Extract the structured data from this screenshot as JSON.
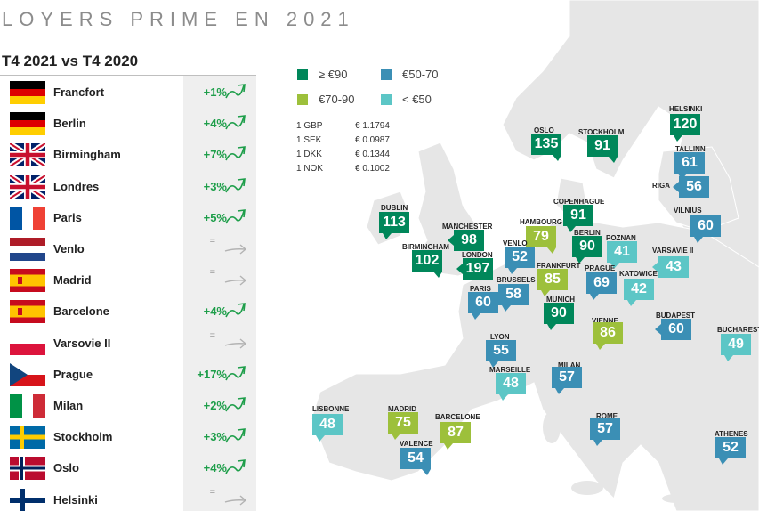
{
  "title": "LOYERS PRIME EN 2021",
  "panel": {
    "subtitle": "T4 2021 vs T4 2020",
    "rows": [
      {
        "city": "Francfort",
        "flag": "de-flag-icon",
        "change": "+1%",
        "trend": "up"
      },
      {
        "city": "Berlin",
        "flag": "de-flag-icon",
        "change": "+4%",
        "trend": "up"
      },
      {
        "city": "Birmingham",
        "flag": "uk-flag-icon",
        "change": "+7%",
        "trend": "up"
      },
      {
        "city": "Londres",
        "flag": "uk-flag-icon",
        "change": "+3%",
        "trend": "up"
      },
      {
        "city": "Paris",
        "flag": "fr-flag-icon",
        "change": "+5%",
        "trend": "up"
      },
      {
        "city": "Venlo",
        "flag": "nl-flag-icon",
        "change": "=",
        "trend": "flat"
      },
      {
        "city": "Madrid",
        "flag": "es-flag-icon",
        "change": "=",
        "trend": "flat"
      },
      {
        "city": "Barcelone",
        "flag": "es-flag-icon",
        "change": "+4%",
        "trend": "up"
      },
      {
        "city": "Varsovie II",
        "flag": "pl-flag-icon",
        "change": "=",
        "trend": "flat"
      },
      {
        "city": "Prague",
        "flag": "cz-flag-icon",
        "change": "+17%",
        "trend": "up"
      },
      {
        "city": "Milan",
        "flag": "it-flag-icon",
        "change": "+2%",
        "trend": "up"
      },
      {
        "city": "Stockholm",
        "flag": "se-flag-icon",
        "change": "+3%",
        "trend": "up"
      },
      {
        "city": "Oslo",
        "flag": "no-flag-icon",
        "change": "+4%",
        "trend": "up"
      },
      {
        "city": "Helsinki",
        "flag": "fi-flag-icon",
        "change": "=",
        "trend": "flat"
      }
    ]
  },
  "legend": [
    {
      "label": "≥ €90",
      "color": "#00875a"
    },
    {
      "label": "€50-70",
      "color": "#3b8fb5"
    },
    {
      "label": "€70-90",
      "color": "#9dc03b"
    },
    {
      "label": "< €50",
      "color": "#5cc6c6"
    }
  ],
  "fx": [
    {
      "currency": "1 GBP",
      "value": "€ 1.1794"
    },
    {
      "currency": "1 SEK",
      "value": "€ 0.0987"
    },
    {
      "currency": "1 DKK",
      "value": "€ 0.1344"
    },
    {
      "currency": "1 NOK",
      "value": "€ 0.1002"
    }
  ],
  "colors": {
    "dark": "#00875a",
    "blue": "#3b8fb5",
    "lime": "#9dc03b",
    "teal": "#5cc6c6",
    "up": "#1e9e4a",
    "flat": "#9a9a9a"
  },
  "markers": [
    {
      "name": "HELSINKI",
      "value": "120",
      "band": "dark"
    },
    {
      "name": "OSLO",
      "value": "135",
      "band": "dark"
    },
    {
      "name": "STOCKHOLM",
      "value": "91",
      "band": "dark"
    },
    {
      "name": "TALLINN",
      "value": "61",
      "band": "blue"
    },
    {
      "name": "RIGA",
      "value": "56",
      "band": "blue"
    },
    {
      "name": "VILNIUS",
      "value": "60",
      "band": "blue"
    },
    {
      "name": "COPENHAGUE",
      "value": "91",
      "band": "dark"
    },
    {
      "name": "DUBLIN",
      "value": "113",
      "band": "dark"
    },
    {
      "name": "MANCHESTER",
      "value": "98",
      "band": "dark"
    },
    {
      "name": "HAMBOURG",
      "value": "79",
      "band": "lime"
    },
    {
      "name": "BERLIN",
      "value": "90",
      "band": "dark"
    },
    {
      "name": "POZNAN",
      "value": "41",
      "band": "teal"
    },
    {
      "name": "BIRMINGHAM",
      "value": "102",
      "band": "dark"
    },
    {
      "name": "LONDON",
      "value": "197",
      "band": "dark"
    },
    {
      "name": "VENLO",
      "value": "52",
      "band": "blue"
    },
    {
      "name": "FRANKFURT",
      "value": "85",
      "band": "lime"
    },
    {
      "name": "VARSAVIE II",
      "value": "43",
      "band": "teal"
    },
    {
      "name": "PRAGUE",
      "value": "69",
      "band": "blue"
    },
    {
      "name": "KATOWICE",
      "value": "42",
      "band": "teal"
    },
    {
      "name": "BRUSSELS",
      "value": "58",
      "band": "blue"
    },
    {
      "name": "PARIS",
      "value": "60",
      "band": "blue"
    },
    {
      "name": "MUNICH",
      "value": "90",
      "band": "dark"
    },
    {
      "name": "VIENNE",
      "value": "86",
      "band": "lime"
    },
    {
      "name": "BUDAPEST",
      "value": "60",
      "band": "blue"
    },
    {
      "name": "BUCHAREST",
      "value": "49",
      "band": "teal"
    },
    {
      "name": "LYON",
      "value": "55",
      "band": "blue"
    },
    {
      "name": "MARSEILLE",
      "value": "48",
      "band": "teal"
    },
    {
      "name": "MILAN",
      "value": "57",
      "band": "blue"
    },
    {
      "name": "LISBONNE",
      "value": "48",
      "band": "teal"
    },
    {
      "name": "MADRID",
      "value": "75",
      "band": "lime"
    },
    {
      "name": "BARCELONE",
      "value": "87",
      "band": "lime"
    },
    {
      "name": "VALENCE",
      "value": "54",
      "band": "blue"
    },
    {
      "name": "ROME",
      "value": "57",
      "band": "blue"
    },
    {
      "name": "ATHENES",
      "value": "52",
      "band": "blue"
    }
  ]
}
